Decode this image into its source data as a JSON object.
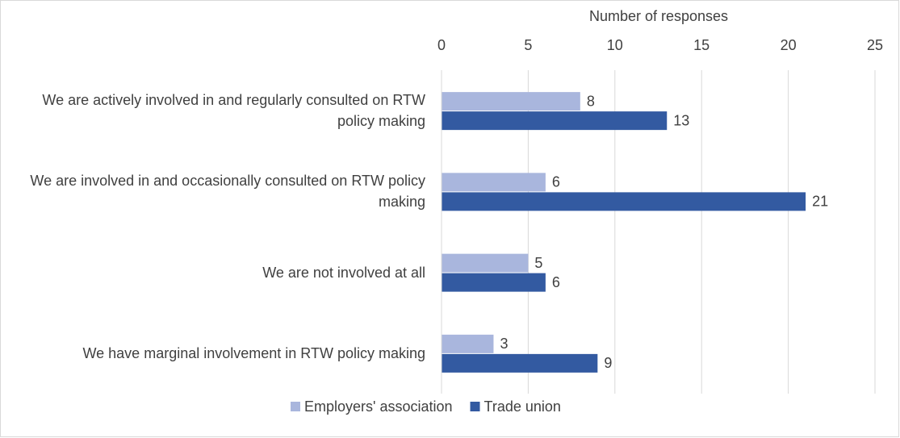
{
  "chart_data": {
    "type": "hbar",
    "x_label": "Number of responses",
    "categories": [
      "We are actively involved in and regularly consulted on RTW policy making",
      "We are involved in and occasionally consulted on RTW policy making",
      "We are not involved at all",
      "We have marginal involvement in RTW policy making"
    ],
    "series": [
      {
        "name": "Employers' association",
        "color": "#a9b6dd",
        "values": [
          8,
          6,
          5,
          3
        ]
      },
      {
        "name": "Trade union",
        "color": "#335aa1",
        "values": [
          13,
          21,
          6,
          9
        ]
      }
    ],
    "xlim": [
      0,
      25
    ],
    "xticks": [
      0,
      5,
      10,
      15,
      20,
      25
    ],
    "grid": true,
    "legend": "bottom"
  }
}
